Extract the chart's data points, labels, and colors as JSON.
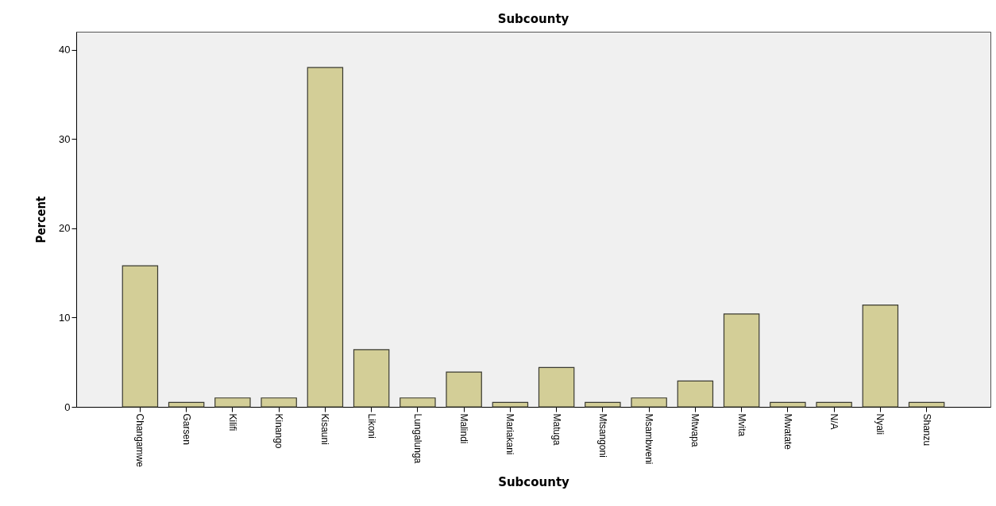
{
  "chart_data": {
    "type": "bar",
    "title": "Subcounty",
    "xlabel": "Subcounty",
    "ylabel": "Percent",
    "categories": [
      "Changamwe",
      "Garsen",
      "Kilifi",
      "Kinango",
      "Kisauni",
      "Likoni",
      "Lungalunga",
      "Malindi",
      "Mariakani",
      "Matuga",
      "Mtsangoni",
      "Msambweni",
      "Mtwapa",
      "Mvita",
      "Mwatate",
      "N/A",
      "Nyali",
      "Shanzu"
    ],
    "values": [
      15.8,
      0.5,
      1.0,
      1.0,
      38.0,
      6.4,
      1.0,
      3.9,
      0.5,
      4.4,
      0.5,
      1.0,
      2.9,
      10.4,
      0.5,
      0.5,
      11.4,
      0.5
    ],
    "color": "#d3ce97",
    "ylim": [
      0,
      42
    ],
    "yticks": [
      0,
      10,
      20,
      30,
      40
    ],
    "grid": false
  }
}
